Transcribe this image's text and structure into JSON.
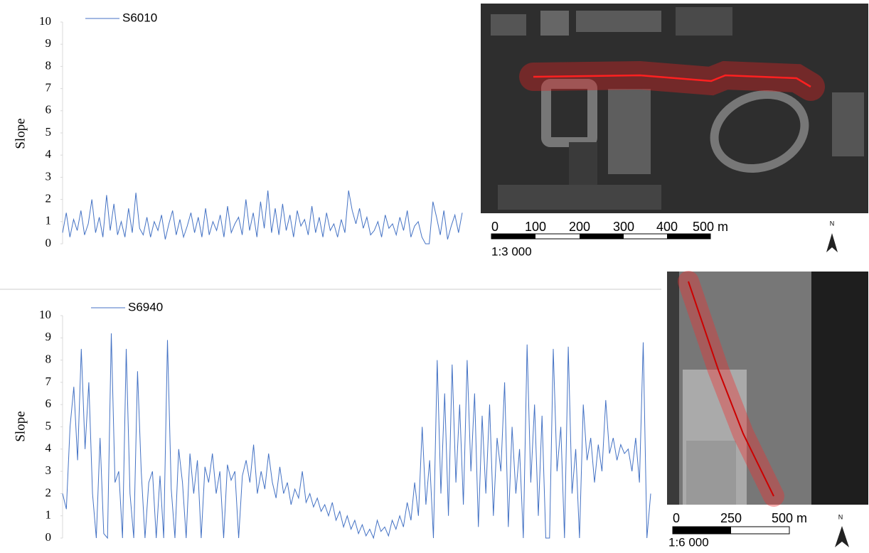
{
  "chart_data": [
    {
      "type": "line",
      "y_label": "Slope",
      "ylim": [
        0,
        10
      ],
      "yticks": [
        0,
        1,
        2,
        3,
        4,
        5,
        6,
        7,
        8,
        9,
        10
      ],
      "series": [
        {
          "name": "S6010",
          "color": "#4472c4",
          "values": [
            0.5,
            1.4,
            0.3,
            1.1,
            0.6,
            1.5,
            0.4,
            0.9,
            2.0,
            0.5,
            1.2,
            0.3,
            2.2,
            0.6,
            1.8,
            0.4,
            1.0,
            0.3,
            1.6,
            0.5,
            2.3,
            0.7,
            0.4,
            1.2,
            0.3,
            1.0,
            0.6,
            1.3,
            0.2,
            0.9,
            1.5,
            0.4,
            1.1,
            0.3,
            0.8,
            1.4,
            0.5,
            1.2,
            0.3,
            1.6,
            0.4,
            1.0,
            0.6,
            1.3,
            0.3,
            1.7,
            0.5,
            0.9,
            1.2,
            0.4,
            2.0,
            0.6,
            1.4,
            0.3,
            1.9,
            0.7,
            2.4,
            0.5,
            1.6,
            0.4,
            1.8,
            0.6,
            1.3,
            0.3,
            1.5,
            0.8,
            1.1,
            0.4,
            1.7,
            0.5,
            1.2,
            0.3,
            1.4,
            0.6,
            0.9,
            0.3,
            1.1,
            0.5,
            2.4,
            1.5,
            0.9,
            1.6,
            0.7,
            1.2,
            0.4,
            0.6,
            1.0,
            0.3,
            1.3,
            0.7,
            0.9,
            0.4,
            1.2,
            0.6,
            1.5,
            0.3,
            0.8,
            1.0,
            0.3,
            0.0,
            0.0,
            1.9,
            1.2,
            0.4,
            1.5,
            0.2,
            0.8,
            1.3,
            0.5,
            1.4
          ]
        }
      ]
    },
    {
      "type": "line",
      "y_label": "Slope",
      "ylim": [
        0,
        10
      ],
      "yticks": [
        0,
        1,
        2,
        3,
        4,
        5,
        6,
        7,
        8,
        9,
        10
      ],
      "series": [
        {
          "name": "S6940",
          "color": "#4472c4",
          "values": [
            2.0,
            1.3,
            5.0,
            6.8,
            3.5,
            8.5,
            4.0,
            7.0,
            2.0,
            0.0,
            4.5,
            0.2,
            0.0,
            9.2,
            2.5,
            3.0,
            0.0,
            8.5,
            2.0,
            0.0,
            7.5,
            3.0,
            0.0,
            2.5,
            3.0,
            0.0,
            2.8,
            0.0,
            8.9,
            2.2,
            0.0,
            4.0,
            2.5,
            0.0,
            3.8,
            2.0,
            3.5,
            0.0,
            3.2,
            2.5,
            3.8,
            2.0,
            3.0,
            0.0,
            3.3,
            2.6,
            3.0,
            0.0,
            2.8,
            3.5,
            2.5,
            4.2,
            2.0,
            3.0,
            2.2,
            3.8,
            2.5,
            1.8,
            3.2,
            2.0,
            2.5,
            1.5,
            2.2,
            1.8,
            3.0,
            1.6,
            2.0,
            1.4,
            1.8,
            1.2,
            1.5,
            1.0,
            1.6,
            0.8,
            1.2,
            0.5,
            1.0,
            0.4,
            0.8,
            0.2,
            0.6,
            0.1,
            0.4,
            0.0,
            0.8,
            0.3,
            0.5,
            0.1,
            0.8,
            0.4,
            1.0,
            0.5,
            1.6,
            0.8,
            2.5,
            1.0,
            5.0,
            1.5,
            3.5,
            0.0,
            8.0,
            2.0,
            6.5,
            1.0,
            7.8,
            2.5,
            6.0,
            1.5,
            8.0,
            3.0,
            6.5,
            0.5,
            5.5,
            2.0,
            6.0,
            1.0,
            4.5,
            3.0,
            7.0,
            0.5,
            5.0,
            2.0,
            4.0,
            0.0,
            8.7,
            2.5,
            6.0,
            1.0,
            5.5,
            0.0,
            0.0,
            8.5,
            3.0,
            5.0,
            0.0,
            8.6,
            2.0,
            4.0,
            0.0,
            6.0,
            3.5,
            4.5,
            2.5,
            4.2,
            3.0,
            6.2,
            3.8,
            4.5,
            3.5,
            4.2,
            3.8,
            4.0,
            3.0,
            4.5,
            2.5,
            8.8,
            0.0,
            2.0
          ]
        }
      ]
    }
  ],
  "maps": [
    {
      "scale_labels": [
        "0",
        "100",
        "200",
        "300",
        "400",
        "500 m"
      ],
      "ratio": "1:3 000",
      "north": "N"
    },
    {
      "scale_labels": [
        "0",
        "250",
        "500 m"
      ],
      "ratio": "1:6 000",
      "north": "N"
    }
  ]
}
